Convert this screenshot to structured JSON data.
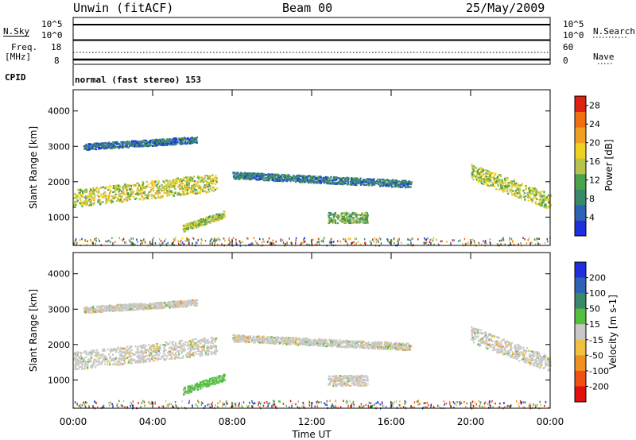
{
  "header": {
    "station": "Unwin (fitACF)",
    "beam": "Beam 00",
    "date": "25/May/2009"
  },
  "status_panels": {
    "nsky_label": "N.Sky",
    "nsky_ticks": [
      "10^5",
      "10^0"
    ],
    "nsearch_label": "N.Search",
    "nsearch_ticks": [
      "10^5",
      "10^0"
    ],
    "freq_label_line1": "Freq.",
    "freq_label_line2": "[MHz]",
    "freq_ticks": [
      "18",
      "8"
    ],
    "nave_label": "Nave",
    "nave_ticks": [
      "60",
      "0"
    ],
    "cpid_label": "CPID",
    "cpid_text": "normal (fast stereo) 153"
  },
  "colors": {
    "power_scale": [
      "#1f2fe0",
      "#2d62b4",
      "#3a8a6a",
      "#4aa24a",
      "#b9c24a",
      "#f0d020",
      "#f0a020",
      "#f07010",
      "#e02010"
    ],
    "velocity_scale": [
      "#1f2fe0",
      "#2d62b4",
      "#3a8a6a",
      "#55c040",
      "#c8c8c8",
      "#f0c040",
      "#f09020",
      "#f05010",
      "#e01010"
    ]
  },
  "chart_data": [
    {
      "type": "heatmap",
      "name": "power",
      "xlabel": "Time UT",
      "ylabel": "Slant Range [km]",
      "ylim": [
        200,
        4600
      ],
      "xlim": [
        "00:00",
        "24:00"
      ],
      "x_ticks": [
        "00:00",
        "04:00",
        "08:00",
        "12:00",
        "16:00",
        "20:00",
        "00:00"
      ],
      "y_ticks": [
        1000,
        2000,
        3000,
        4000
      ],
      "colorbar": {
        "label": "Power [dB]",
        "ticks": [
          4,
          8,
          12,
          16,
          20,
          24,
          28
        ],
        "range": [
          0,
          30
        ]
      },
      "regions": [
        {
          "t_start": 0.0,
          "t_end": 7.2,
          "r_center_start": 1550,
          "r_center_end": 2000,
          "r_width": 500,
          "level": 16
        },
        {
          "t_start": 0.5,
          "t_end": 6.2,
          "r_center_start": 3000,
          "r_center_end": 3200,
          "r_width": 180,
          "level": 6
        },
        {
          "t_start": 5.5,
          "t_end": 7.6,
          "r_center_start": 700,
          "r_center_end": 1100,
          "r_width": 200,
          "level": 14
        },
        {
          "t_start": 8.0,
          "t_end": 17.0,
          "r_center_start": 2200,
          "r_center_end": 1950,
          "r_width": 200,
          "level": 7
        },
        {
          "t_start": 12.8,
          "t_end": 14.8,
          "r_center_start": 1000,
          "r_center_end": 1000,
          "r_width": 300,
          "level": 12
        },
        {
          "t_start": 20.0,
          "t_end": 24.0,
          "r_center_start": 2300,
          "r_center_end": 1450,
          "r_width": 450,
          "level": 15
        }
      ]
    },
    {
      "type": "heatmap",
      "name": "velocity",
      "xlabel": "Time UT",
      "ylabel": "Slant Range [km]",
      "ylim": [
        200,
        4600
      ],
      "xlim": [
        "00:00",
        "24:00"
      ],
      "x_ticks": [
        "00:00",
        "04:00",
        "08:00",
        "12:00",
        "16:00",
        "20:00",
        "00:00"
      ],
      "y_ticks": [
        1000,
        2000,
        3000,
        4000
      ],
      "colorbar": {
        "label": "Velocity [m s-1]",
        "ticks": [
          200,
          100,
          50,
          15,
          -15,
          -50,
          -100,
          -200
        ]
      },
      "regions": [
        {
          "t_start": 0.0,
          "t_end": 7.2,
          "r_center_start": 1550,
          "r_center_end": 2000,
          "r_width": 500,
          "level": 0
        },
        {
          "t_start": 0.5,
          "t_end": 6.2,
          "r_center_start": 3000,
          "r_center_end": 3200,
          "r_width": 180,
          "level": 0
        },
        {
          "t_start": 5.5,
          "t_end": 7.6,
          "r_center_start": 700,
          "r_center_end": 1100,
          "r_width": 200,
          "level": 60
        },
        {
          "t_start": 8.0,
          "t_end": 17.0,
          "r_center_start": 2200,
          "r_center_end": 1950,
          "r_width": 200,
          "level": 0
        },
        {
          "t_start": 12.8,
          "t_end": 14.8,
          "r_center_start": 1000,
          "r_center_end": 1000,
          "r_width": 300,
          "level": 0
        },
        {
          "t_start": 20.0,
          "t_end": 24.0,
          "r_center_start": 2300,
          "r_center_end": 1450,
          "r_width": 450,
          "level": 0
        }
      ]
    }
  ]
}
